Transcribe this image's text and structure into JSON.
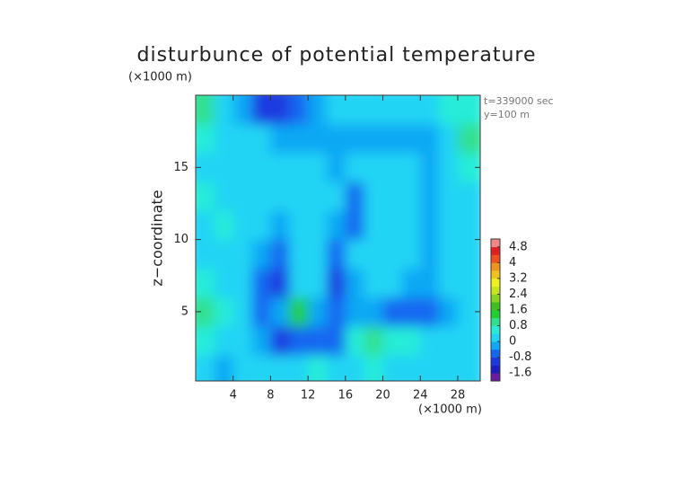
{
  "chart_data": {
    "type": "contour",
    "title": "disturbunce of potential temperature",
    "y_unit": "(×1000 m)",
    "x_unit": "(×1000 m)",
    "ylabel": "z−coordinate",
    "annotations": [
      "t=339000 sec",
      "y=100 m"
    ],
    "x": [
      1,
      3,
      5,
      7,
      9,
      11,
      13,
      15,
      17,
      19,
      21,
      23,
      25,
      27,
      29
    ],
    "y": [
      1,
      3,
      5,
      7,
      9,
      11,
      13,
      15,
      17,
      19
    ],
    "z": [
      [
        0.2,
        -0.2,
        0.2,
        0.2,
        0.2,
        0.2,
        0.4,
        0.2,
        0.2,
        0.4,
        0.2,
        0.2,
        0.2,
        0.2,
        0
      ],
      [
        0.4,
        0.2,
        0.2,
        -0.4,
        -1.0,
        -0.8,
        -0.6,
        -0.8,
        0.4,
        0.8,
        0.6,
        0.4,
        0.2,
        0.2,
        0
      ],
      [
        0.8,
        0.4,
        0.2,
        -0.6,
        -0.4,
        1.2,
        -0.2,
        -0.8,
        -0.4,
        -0.2,
        -0.6,
        -0.6,
        -0.8,
        -0.2,
        0.2
      ],
      [
        0.4,
        0.2,
        0.2,
        -0.8,
        -1.2,
        0.2,
        0.2,
        -1.0,
        -0.2,
        0.2,
        0,
        -0.2,
        -0.2,
        0.2,
        0.2
      ],
      [
        0.2,
        0.2,
        0.2,
        -0.2,
        -0.8,
        0.2,
        0.2,
        -0.6,
        0.2,
        0.2,
        0.2,
        0.2,
        -0.4,
        0.2,
        0.2
      ],
      [
        0.2,
        0.4,
        0.2,
        0.2,
        -0.4,
        0.2,
        0.2,
        -0.2,
        -0.6,
        0.2,
        0.2,
        0.2,
        -0.4,
        0.2,
        0.2
      ],
      [
        0.4,
        0.2,
        0.2,
        0.2,
        0.2,
        0.2,
        0.2,
        0.2,
        -0.8,
        0.2,
        0.2,
        0.2,
        -0.4,
        0.2,
        0.2
      ],
      [
        0.2,
        0.2,
        0.2,
        0.2,
        0.2,
        0.2,
        0,
        -0.4,
        0.2,
        0.2,
        0.2,
        0.2,
        -0.4,
        0.2,
        0.4
      ],
      [
        0.4,
        0.2,
        0.2,
        0.2,
        -0.2,
        -0.2,
        -0.2,
        -0.2,
        -0.2,
        -0.2,
        -0.2,
        -0.2,
        -0.4,
        0.2,
        0.8
      ],
      [
        1.0,
        0.2,
        -0.4,
        -1.0,
        -1.2,
        -0.6,
        -0.2,
        0.2,
        0.2,
        0.2,
        0.2,
        0.2,
        0.2,
        0.4,
        0.6
      ]
    ],
    "xlim": [
      0,
      30.4
    ],
    "ylim": [
      0.2,
      20
    ],
    "xticks": [
      4,
      8,
      12,
      16,
      20,
      24,
      28
    ],
    "yticks": [
      5,
      10,
      15
    ],
    "clim": [
      -2,
      5.2
    ],
    "cticks": [
      -1.6,
      -0.8,
      0,
      0.8,
      1.6,
      2.4,
      3.2,
      4,
      4.8
    ],
    "colors": [
      "#6a1aa0",
      "#1c1cc0",
      "#1a3ae0",
      "#1468f0",
      "#10a8f4",
      "#22d4f4",
      "#28ecd8",
      "#30e090",
      "#20d030",
      "#40c020",
      "#88d420",
      "#c8e420",
      "#f0f020",
      "#f0c420",
      "#f09420",
      "#f05020",
      "#e02020",
      "#f08888"
    ]
  }
}
